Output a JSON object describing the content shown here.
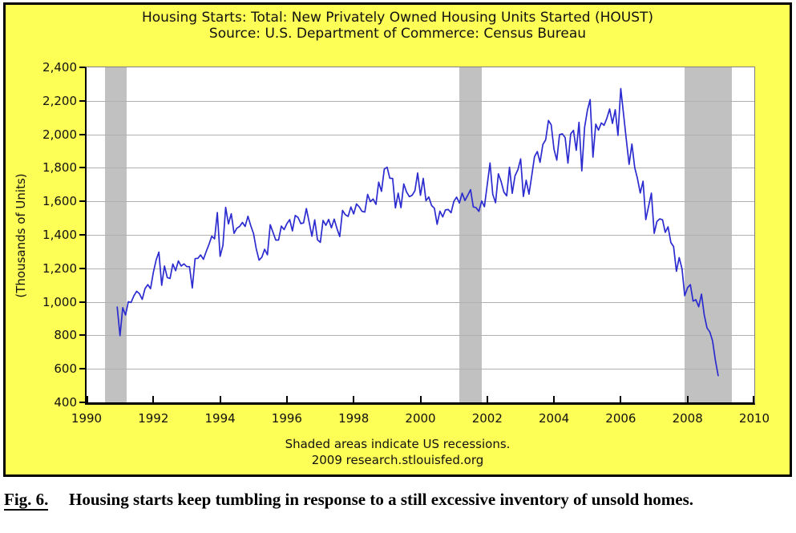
{
  "chart": {
    "title": "Housing Starts: Total: New Privately Owned Housing Units Started (HOUST)",
    "subtitle": "Source: U.S. Department of Commerce: Census Bureau",
    "ylabel": "(Thousands of Units)",
    "footnote1": "Shaded areas indicate US recessions.",
    "footnote2": "2009 research.stlouisfed.org",
    "colors": {
      "background": "#fdff56",
      "line": "#2b2bd0",
      "recession_band": "#c1c1c1",
      "gridline": "#b0b0b0",
      "frame": "#000000",
      "text": "#111111"
    }
  },
  "chart_data": {
    "type": "line",
    "title": "Housing Starts: Total: New Privately Owned Housing Units Started (HOUST)",
    "subtitle": "Source: U.S. Department of Commerce: Census Bureau",
    "xlabel": "",
    "ylabel": "(Thousands of Units)",
    "xlim": [
      1990,
      2010
    ],
    "ylim": [
      400,
      2400
    ],
    "grid": "horizontal",
    "legend": "none",
    "frequency": "monthly",
    "x_start": 1990.9167,
    "x_step": 0.08333,
    "series_name": "HOUST",
    "values": [
      969,
      798,
      965,
      921,
      1001,
      996,
      1036,
      1063,
      1049,
      1015,
      1079,
      1103,
      1079,
      1176,
      1250,
      1297,
      1099,
      1214,
      1145,
      1139,
      1226,
      1186,
      1244,
      1214,
      1227,
      1210,
      1210,
      1083,
      1258,
      1260,
      1280,
      1254,
      1300,
      1343,
      1392,
      1376,
      1533,
      1272,
      1337,
      1564,
      1465,
      1526,
      1409,
      1439,
      1450,
      1474,
      1450,
      1511,
      1455,
      1407,
      1316,
      1249,
      1267,
      1314,
      1281,
      1461,
      1416,
      1369,
      1369,
      1452,
      1431,
      1467,
      1491,
      1424,
      1516,
      1504,
      1467,
      1472,
      1557,
      1475,
      1392,
      1489,
      1370,
      1355,
      1486,
      1457,
      1492,
      1442,
      1494,
      1437,
      1390,
      1546,
      1520,
      1510,
      1566,
      1525,
      1584,
      1567,
      1540,
      1536,
      1641,
      1598,
      1614,
      1582,
      1715,
      1660,
      1792,
      1804,
      1738,
      1737,
      1561,
      1649,
      1562,
      1704,
      1657,
      1628,
      1636,
      1663,
      1769,
      1636,
      1737,
      1604,
      1626,
      1575,
      1559,
      1463,
      1541,
      1507,
      1549,
      1551,
      1532,
      1600,
      1625,
      1590,
      1649,
      1605,
      1636,
      1670,
      1567,
      1562,
      1540,
      1602,
      1568,
      1698,
      1829,
      1642,
      1592,
      1764,
      1717,
      1655,
      1633,
      1804,
      1648,
      1753,
      1788,
      1853,
      1629,
      1726,
      1643,
      1751,
      1867,
      1897,
      1833,
      1939,
      1967,
      2083,
      2057,
      1911,
      1846,
      1998,
      2003,
      1981,
      1828,
      2002,
      2024,
      1905,
      2072,
      1782,
      2042,
      2144,
      2207,
      1864,
      2061,
      2025,
      2068,
      2054,
      2095,
      2151,
      2065,
      2147,
      1994,
      2273,
      2119,
      1969,
      1821,
      1942,
      1802,
      1737,
      1650,
      1720,
      1491,
      1570,
      1649,
      1409,
      1480,
      1495,
      1490,
      1415,
      1448,
      1354,
      1330,
      1183,
      1264,
      1197,
      1037,
      1084,
      1103,
      1005,
      1013,
      971,
      1046,
      923,
      844,
      820,
      767,
      652,
      560
    ],
    "x_ticks": [
      {
        "v": 1990,
        "label": "1990"
      },
      {
        "v": 1992,
        "label": "1992"
      },
      {
        "v": 1994,
        "label": "1994"
      },
      {
        "v": 1996,
        "label": "1996"
      },
      {
        "v": 1998,
        "label": "1998"
      },
      {
        "v": 2000,
        "label": "2000"
      },
      {
        "v": 2002,
        "label": "2002"
      },
      {
        "v": 2004,
        "label": "2004"
      },
      {
        "v": 2006,
        "label": "2006"
      },
      {
        "v": 2008,
        "label": "2008"
      },
      {
        "v": 2010,
        "label": "2010"
      }
    ],
    "y_ticks": [
      {
        "v": 400,
        "label": "400"
      },
      {
        "v": 600,
        "label": "600"
      },
      {
        "v": 800,
        "label": "800"
      },
      {
        "v": 1000,
        "label": "1,000"
      },
      {
        "v": 1200,
        "label": "1,200"
      },
      {
        "v": 1400,
        "label": "1,400"
      },
      {
        "v": 1600,
        "label": "1,600"
      },
      {
        "v": 1800,
        "label": "1,800"
      },
      {
        "v": 2000,
        "label": "2,000"
      },
      {
        "v": 2200,
        "label": "2,200"
      },
      {
        "v": 2400,
        "label": "2,400"
      }
    ],
    "recessions": [
      {
        "start": 1990.542,
        "end": 1991.208
      },
      {
        "start": 2001.167,
        "end": 2001.833
      },
      {
        "start": 2007.917,
        "end": 2009.333
      }
    ]
  },
  "caption": {
    "label": "Fig. 6.",
    "text": "Housing starts keep tumbling in response to a still excessive inventory of unsold homes."
  }
}
